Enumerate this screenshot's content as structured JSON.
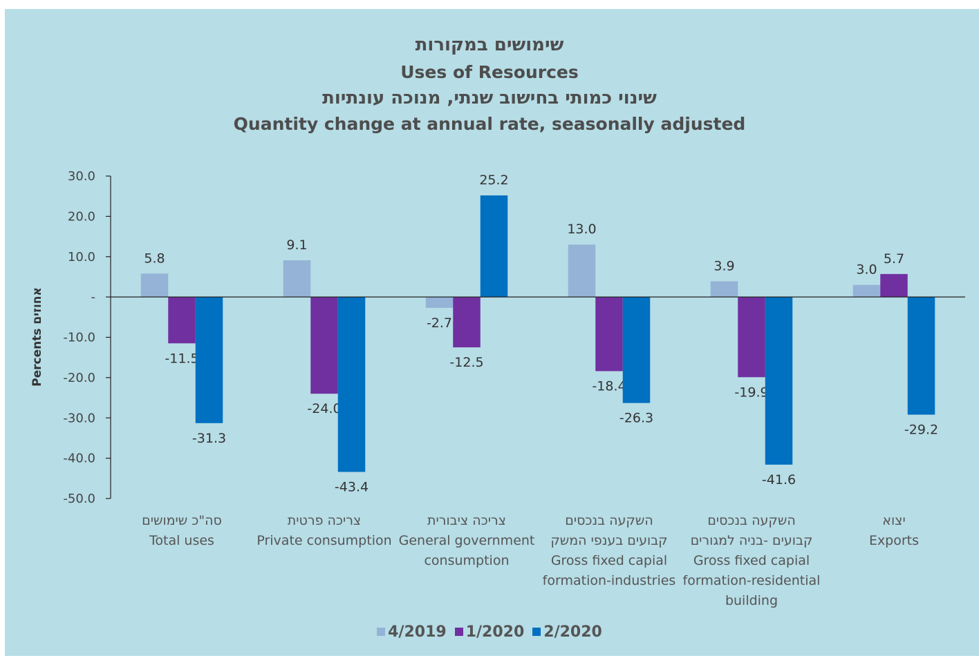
{
  "titles": {
    "line1": "שימושים במקורות",
    "line2": "Uses of Resources",
    "line3": "שינוי כמותי בחישוב שנתי, מנוכה עונתיות",
    "line4": "Quantity change at annual rate, seasonally adjusted"
  },
  "chart_data": {
    "type": "bar",
    "ylabel": "Percents אחוזים",
    "ylim": [
      -50,
      30
    ],
    "yticks": [
      "30.0",
      "20.0",
      "10.0",
      "-",
      "-10.0",
      "-20.0",
      "-30.0",
      "-40.0",
      "-50.0"
    ],
    "categories": [
      [
        "סה\"כ שימושים",
        "Total uses"
      ],
      [
        "צריכה פרטית",
        "Private consumption"
      ],
      [
        "צריכה ציבורית",
        "General government",
        "consumption"
      ],
      [
        "השקעה בנכסים",
        "קבועים בענפי המשק",
        "Gross fixed capial",
        "formation-industries"
      ],
      [
        "השקעה בנכסים",
        "קבועים -בניה למגורים",
        "Gross fixed capial",
        "formation-residential",
        "building"
      ],
      [
        "יצוא",
        "Exports"
      ]
    ],
    "series": [
      {
        "name": "4/2019",
        "color": "#95b3d7",
        "values": [
          5.8,
          9.1,
          -2.7,
          13.0,
          3.9,
          3.0
        ]
      },
      {
        "name": "1/2020",
        "color": "#7030a0",
        "values": [
          -11.5,
          -24.0,
          -12.5,
          -18.4,
          -19.9,
          5.7
        ]
      },
      {
        "name": "2/2020",
        "color": "#0070c0",
        "values": [
          -31.3,
          -43.4,
          25.2,
          -26.3,
          -41.6,
          -29.2
        ]
      }
    ],
    "data_labels": [
      [
        "5.8",
        "9.1",
        "-2.7",
        "13.0",
        "3.9",
        "3.0"
      ],
      [
        "-11.5",
        "-24.0",
        "-12.5",
        "-18.4",
        "-19.9",
        "5.7"
      ],
      [
        "-31.3",
        "-43.4",
        "25.2",
        "-26.3",
        "-41.6",
        "-29.2"
      ]
    ],
    "legend_position": "bottom",
    "grid": false
  }
}
